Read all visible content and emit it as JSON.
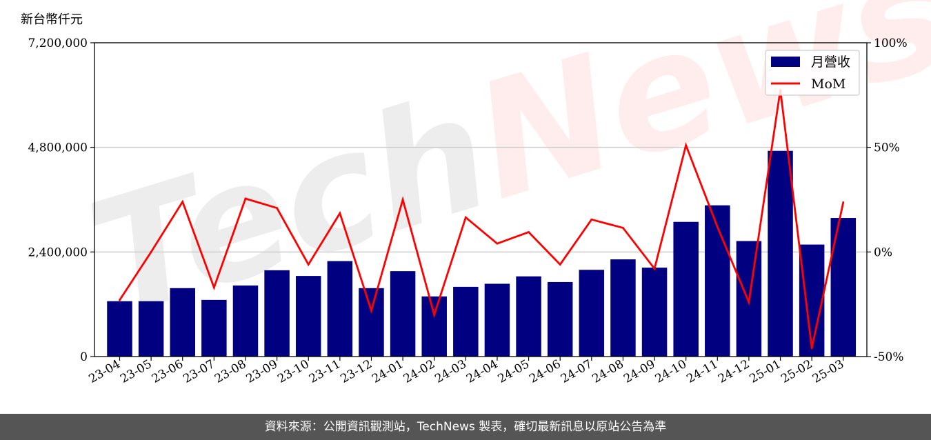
{
  "unit_label": "新台幣仟元",
  "footer_text": "資料來源：公開資訊觀測站，TechNews 製表，確切最新訊息以原站公告為準",
  "watermark_text": "TechNews",
  "colors": {
    "bar": "#000080",
    "line": "#ff0000",
    "grid": "#cccccc",
    "footer_bg": "#555555"
  },
  "chart_data": {
    "type": "bar",
    "categories": [
      "23-04",
      "23-05",
      "23-06",
      "23-07",
      "23-08",
      "23-09",
      "23-10",
      "23-11",
      "23-12",
      "24-01",
      "24-02",
      "24-03",
      "24-04",
      "24-05",
      "24-06",
      "24-07",
      "24-08",
      "24-09",
      "24-10",
      "24-11",
      "24-12",
      "25-01",
      "25-02",
      "25-03"
    ],
    "series": [
      {
        "name": "月營收",
        "type": "bar",
        "axis": "left",
        "values": [
          1270000,
          1270000,
          1570000,
          1300000,
          1630000,
          1980000,
          1850000,
          2190000,
          1570000,
          1960000,
          1380000,
          1600000,
          1670000,
          1840000,
          1710000,
          1990000,
          2230000,
          2040000,
          3090000,
          3470000,
          2650000,
          4720000,
          2570000,
          3180000
        ]
      },
      {
        "name": "MoM",
        "type": "line",
        "axis": "right",
        "values": [
          -23,
          0,
          24,
          -17,
          25.5,
          21,
          -6,
          18.5,
          -28,
          25,
          -30,
          16.5,
          4,
          9.5,
          -6,
          15.5,
          11.5,
          -8,
          51,
          12,
          -24,
          77.5,
          -46,
          23.7
        ]
      }
    ],
    "ylim_left": [
      0,
      7200000
    ],
    "yticks_left": [
      "0",
      "2,400,000",
      "4,800,000",
      "7,200,000"
    ],
    "ytick_values_left": [
      0,
      2400000,
      4800000,
      7200000
    ],
    "ylim_right": [
      -50,
      100
    ],
    "yticks_right": [
      "-50%",
      "0%",
      "50%",
      "100%"
    ],
    "ytick_values_right": [
      -50,
      0,
      50,
      100
    ],
    "grid": true,
    "legend_position": "top-right"
  }
}
